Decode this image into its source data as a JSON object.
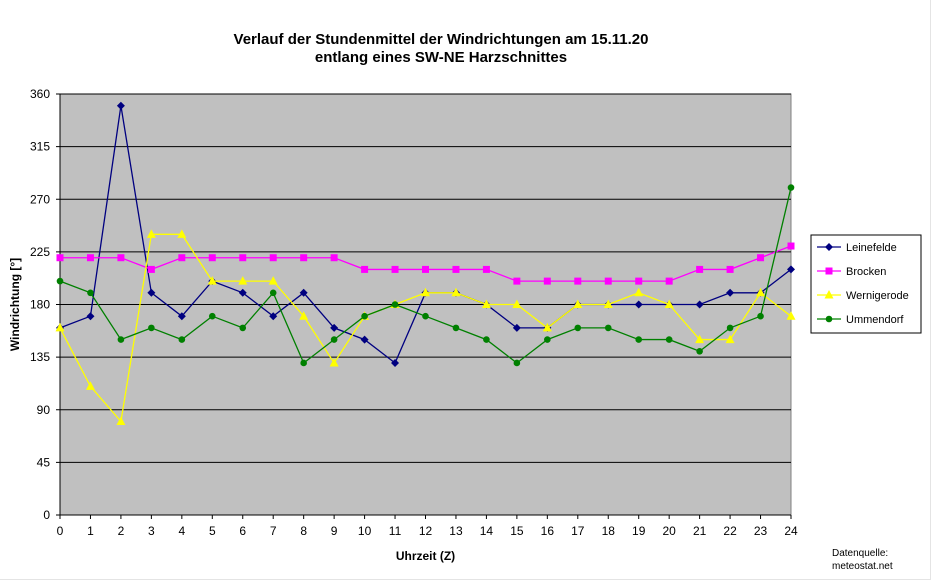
{
  "chart_data": {
    "type": "line",
    "title": "Verlauf der Stundenmittel der Windrichtungen am 15.11.20",
    "subtitle": "entlang eines SW-NE Harzschnittes",
    "xlabel": "Uhrzeit (Z)",
    "ylabel": "Windrichtung [°]",
    "x": [
      0,
      1,
      2,
      3,
      4,
      5,
      6,
      7,
      8,
      9,
      10,
      11,
      12,
      13,
      14,
      15,
      16,
      17,
      18,
      19,
      20,
      21,
      22,
      23,
      24
    ],
    "xlim": [
      0,
      24
    ],
    "ylim": [
      0,
      360
    ],
    "yticks": [
      0,
      45,
      90,
      135,
      180,
      225,
      270,
      315,
      360
    ],
    "grid": true,
    "legend_position": "right",
    "series": [
      {
        "name": "Leinefelde",
        "color": "#000080",
        "marker": "diamond",
        "values": [
          160,
          170,
          350,
          190,
          170,
          200,
          190,
          170,
          190,
          160,
          150,
          130,
          190,
          190,
          180,
          160,
          160,
          180,
          180,
          180,
          180,
          180,
          190,
          190,
          210
        ]
      },
      {
        "name": "Brocken",
        "color": "#ff00ff",
        "marker": "square",
        "values": [
          220,
          220,
          220,
          210,
          220,
          220,
          220,
          220,
          220,
          220,
          210,
          210,
          210,
          210,
          210,
          200,
          200,
          200,
          200,
          200,
          200,
          210,
          210,
          220,
          230
        ]
      },
      {
        "name": "Wernigerode",
        "color": "#ffff00",
        "marker": "triangle",
        "values": [
          160,
          110,
          80,
          240,
          240,
          200,
          200,
          200,
          170,
          130,
          170,
          180,
          190,
          190,
          180,
          180,
          160,
          180,
          180,
          190,
          180,
          150,
          150,
          190,
          170
        ]
      },
      {
        "name": "Ummendorf",
        "color": "#008000",
        "marker": "circle",
        "values": [
          200,
          190,
          150,
          160,
          150,
          170,
          160,
          190,
          130,
          150,
          170,
          180,
          170,
          160,
          150,
          130,
          150,
          160,
          160,
          150,
          150,
          140,
          160,
          170,
          280
        ]
      }
    ]
  },
  "source": {
    "line1": "Datenquelle:",
    "line2": "meteostat.net"
  }
}
